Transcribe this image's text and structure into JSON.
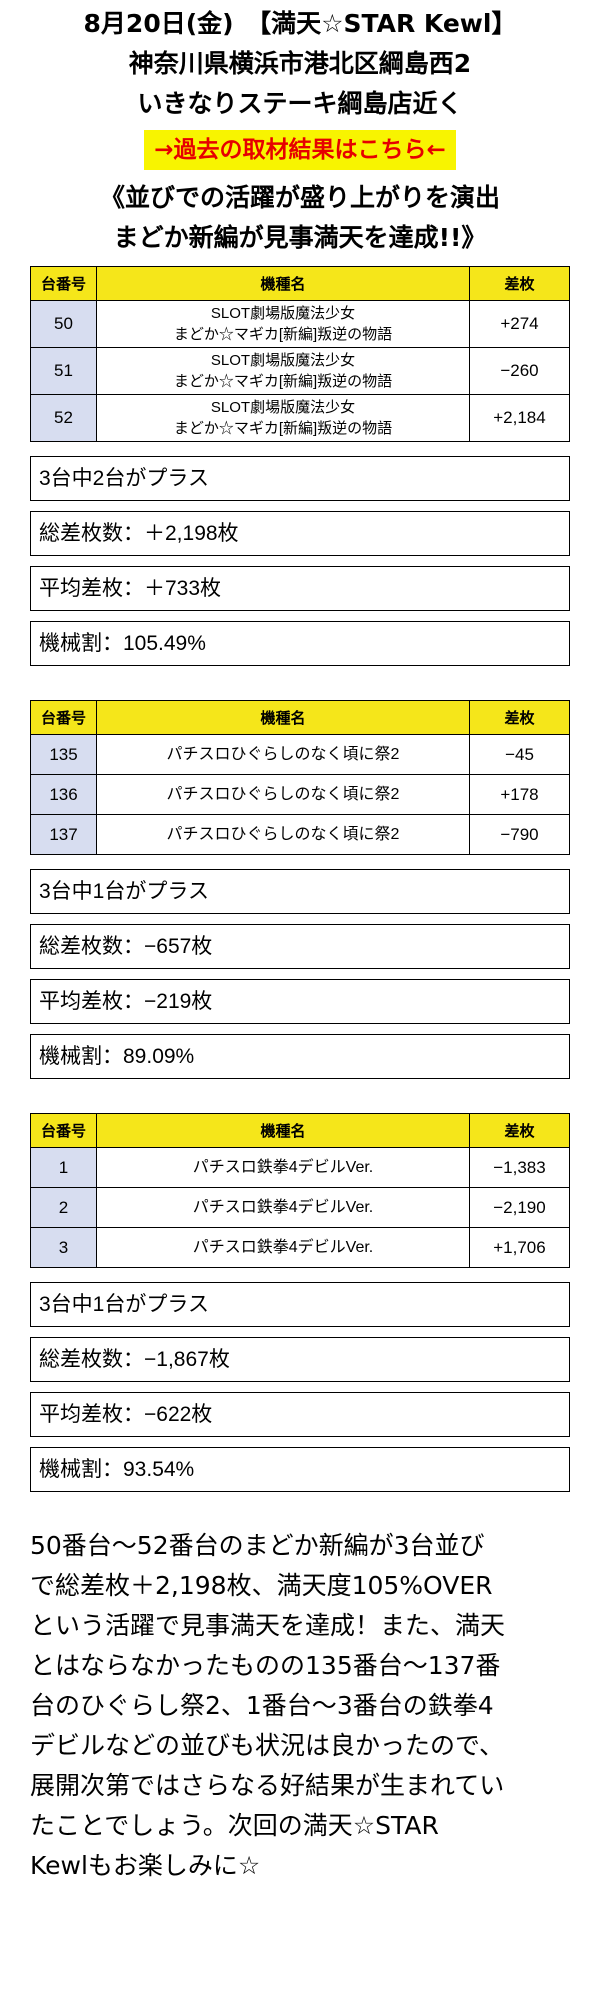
{
  "header": {
    "line1": "8月20日(金)　【満天☆STAR Kewl】",
    "line2": "神奈川県横浜市港北区綱島西2",
    "line3": "いきなりステーキ綱島店近く",
    "link_text": "→過去の取材結果はこちら←",
    "headline1": "《並びでの活躍が盛り上がりを演出",
    "headline2": "まどか新編が見事満天を達成!!》"
  },
  "colors": {
    "link_bg": "#f8f400",
    "link_text": "#e60000",
    "table_header_bg": "#f5e61a",
    "num_cell_bg": "#d7ddf0"
  },
  "table_headers": {
    "num": "台番号",
    "name": "機種名",
    "diff": "差枚"
  },
  "groups": [
    {
      "rows": [
        {
          "num": "50",
          "name1": "SLOT劇場版魔法少女",
          "name2": "まどか☆マギカ[新編]叛逆の物語",
          "diff": "+274"
        },
        {
          "num": "51",
          "name1": "SLOT劇場版魔法少女",
          "name2": "まどか☆マギカ[新編]叛逆の物語",
          "diff": "−260"
        },
        {
          "num": "52",
          "name1": "SLOT劇場版魔法少女",
          "name2": "まどか☆マギカ[新編]叛逆の物語",
          "diff": "+2,184"
        }
      ],
      "stats": {
        "plus_count": "3台中2台がプラス",
        "total": "総差枚数：＋2,198枚",
        "average": "平均差枚：＋733枚",
        "ratio": "機械割：105.49%"
      }
    },
    {
      "rows": [
        {
          "num": "135",
          "name1": "パチスロひぐらしのなく頃に祭2",
          "diff": "−45"
        },
        {
          "num": "136",
          "name1": "パチスロひぐらしのなく頃に祭2",
          "diff": "+178"
        },
        {
          "num": "137",
          "name1": "パチスロひぐらしのなく頃に祭2",
          "diff": "−790"
        }
      ],
      "stats": {
        "plus_count": "3台中1台がプラス",
        "total": "総差枚数：−657枚",
        "average": "平均差枚：−219枚",
        "ratio": "機械割：89.09%"
      }
    },
    {
      "rows": [
        {
          "num": "1",
          "name1": "パチスロ鉄拳4デビルVer.",
          "diff": "−1,383"
        },
        {
          "num": "2",
          "name1": "パチスロ鉄拳4デビルVer.",
          "diff": "−2,190"
        },
        {
          "num": "3",
          "name1": "パチスロ鉄拳4デビルVer.",
          "diff": "+1,706"
        }
      ],
      "stats": {
        "plus_count": "3台中1台がプラス",
        "total": "総差枚数：−1,867枚",
        "average": "平均差枚：−622枚",
        "ratio": "機械割：93.54%"
      }
    }
  ],
  "summary_lines": [
    "50番台〜52番台のまどか新編が3台並び",
    "で総差枚＋2,198枚、満天度105%OVER",
    "という活躍で見事満天を達成！また、満天",
    "とはならなかったものの135番台〜137番",
    "台のひぐらし祭2、1番台〜3番台の鉄拳4",
    "デビルなどの並びも状況は良かったので、",
    "展開次第ではさらなる好結果が生まれてい",
    "たことでしょう。次回の満天☆STAR",
    "Kewlもお楽しみに☆"
  ]
}
